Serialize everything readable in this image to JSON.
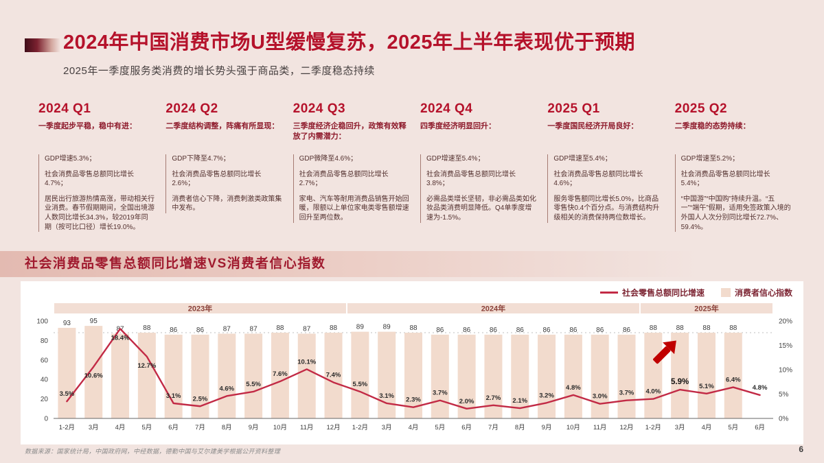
{
  "slide": {
    "title": "2024年中国消费市场U型缓慢复苏，2025年上半年表现优于预期",
    "subtitle": "2025年一季度服务类消费的增长势头强于商品类，二季度稳态持续",
    "source": "数据来源：国家统计局，中国政府网，中经数据，德勤中国与艾尔建美学根据公开资料整理",
    "page_number": "6",
    "accent_color": "#b5122b",
    "background_color": "#f2e4e0"
  },
  "quarters": [
    {
      "label": "2024 Q1",
      "headline": "一季度起步平稳，稳中有进：",
      "items": [
        "GDP增速5.3%；",
        "社会消费品零售总额同比增长4.7%；",
        "居民出行旅游热情高涨，带动相关行业消费。春节假期期间，全国出境游人数同比增长34.3%，较2019年同期（按可比口径）增长19.0%。"
      ]
    },
    {
      "label": "2024 Q2",
      "headline": "二季度结构调整，阵痛有所显现：",
      "items": [
        "GDP下降至4.7%；",
        "社会消费品零售总额同比增长2.6%；",
        "消费者信心下降，消费刺激类政策集中发布。"
      ]
    },
    {
      "label": "2024 Q3",
      "headline": "三季度经济企稳回升，政策有效释放了内需潜力：",
      "items": [
        "GDP微降至4.6%；",
        "社会消费品零售总额同比增长2.7%；",
        "家电、汽车等耐用消费品销售开始回暖，限额以上单位家电类零售额增速回升至两位数。"
      ]
    },
    {
      "label": "2024 Q4",
      "headline": "四季度经济明显回升：",
      "items": [
        "GDP增速至5.4%；",
        "社会消费品零售总额同比增长3.8%；",
        "必需品类增长坚韧，非必需品类如化妆品类消费明显降低。Q4单季度增速为-1.5%。"
      ]
    },
    {
      "label": "2025 Q1",
      "headline": "一季度国民经济开局良好：",
      "items": [
        "GDP增速至5.4%；",
        "社会消费品零售总额同比增长4.6%；",
        "服务零售额同比增长5.0%，比商品零售快0.4个百分点。与消费结构升级相关的消费保持两位数增长。"
      ]
    },
    {
      "label": "2025 Q2",
      "headline": "二季度稳的态势持续：",
      "items": [
        "GDP增速至5.2%；",
        "社会消费品零售总额同比增长5.4%；",
        "“中国游”“中国购”持续升温。“五一”“端午”假期，适用免签政策入境的外国人人次分别同比增长72.7%、59.4%。"
      ]
    }
  ],
  "chart_data": {
    "type": "combo",
    "title": "社会消费品零售总额同比增速VS消费者信心指数",
    "legend_position": "top-right",
    "categories": [
      "1-2月",
      "3月",
      "4月",
      "5月",
      "6月",
      "7月",
      "8月",
      "9月",
      "10月",
      "11月",
      "12月",
      "1-2月",
      "3月",
      "4月",
      "5月",
      "6月",
      "7月",
      "8月",
      "9月",
      "10月",
      "11月",
      "12月",
      "1-2月",
      "3月",
      "4月",
      "5月",
      "6月"
    ],
    "year_groups": [
      {
        "label": "2023年",
        "count": 11
      },
      {
        "label": "2024年",
        "count": 11
      },
      {
        "label": "2025年",
        "count": 5
      }
    ],
    "series": [
      {
        "name": "消费者信心指数",
        "type": "bar",
        "axis": "left",
        "color": "#f2dbcd",
        "values": [
          93,
          95,
          87,
          88,
          86,
          86,
          87,
          87,
          88,
          87,
          88,
          89,
          89,
          88,
          86,
          86,
          86,
          86,
          86,
          86,
          86,
          86,
          88,
          88,
          88,
          88,
          null
        ]
      },
      {
        "name": "社会零售总额同比增速",
        "type": "line",
        "axis": "right",
        "unit": "%",
        "color": "#c22a45",
        "values": [
          3.5,
          10.6,
          18.4,
          12.7,
          3.1,
          2.5,
          4.6,
          5.5,
          7.6,
          10.1,
          7.4,
          5.5,
          3.1,
          2.3,
          3.7,
          2.0,
          2.7,
          2.1,
          3.2,
          4.8,
          3.0,
          3.7,
          4.0,
          5.9,
          5.1,
          6.4,
          4.8
        ]
      }
    ],
    "left_axis": {
      "min": 0,
      "max": 100,
      "ticks": [
        0,
        20,
        40,
        60,
        80,
        100
      ]
    },
    "right_axis": {
      "min": 0,
      "max": 20,
      "tick_values": [
        0,
        5,
        10,
        15,
        20
      ],
      "tick_labels": [
        "0%",
        "5%",
        "10%",
        "15%",
        "20%"
      ]
    },
    "reference_line": {
      "axis": "left",
      "value": 88,
      "style": "dashed"
    },
    "label_below_indices": [
      1,
      2,
      3
    ],
    "label_bold_indices": [
      23
    ],
    "annotation": {
      "type": "arrow-up-right",
      "color": "#c00000",
      "at_category_index": 22
    }
  }
}
